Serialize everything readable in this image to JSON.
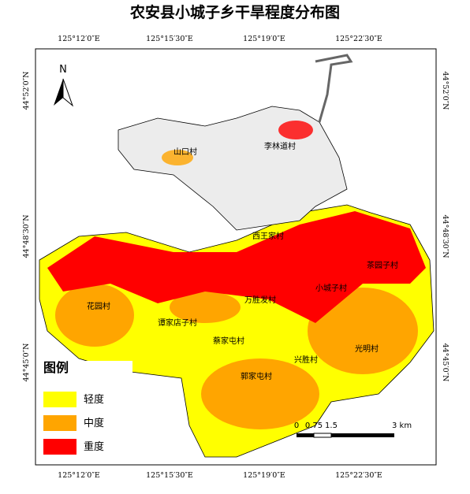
{
  "title": "农安县小城子乡干旱程度分布图",
  "north_label": "N",
  "top_coordinates": [
    "125°12′0″E",
    "125°15′30″E",
    "125°19′0″E",
    "125°22′30″E"
  ],
  "bottom_coordinates": [
    "125°12′0″E",
    "125°15′30″E",
    "125°19′0″E",
    "125°22′30″E"
  ],
  "left_coordinates": [
    "44°52′0″N",
    "44°48′30″N",
    "44°45′0″N"
  ],
  "right_coordinates": [
    "44°52′0″N",
    "44°48′30″N",
    "44°45′0″N"
  ],
  "villages": [
    "山口村",
    "李林道村",
    "西王家村",
    "茶园子村",
    "小城子村",
    "万胜发村",
    "花园村",
    "谭家店子村",
    "蔡家屯村",
    "兴胜村",
    "光明村",
    "郭家屯村"
  ],
  "legend": {
    "title": "图例",
    "items": [
      {
        "label": "轻度",
        "color": "#ffff00"
      },
      {
        "label": "中度",
        "color": "#ffa500"
      },
      {
        "label": "重度",
        "color": "#ff0000"
      }
    ]
  },
  "scale_bar": {
    "labels": [
      "0",
      "0.75",
      "1.5",
      "3 km"
    ]
  }
}
